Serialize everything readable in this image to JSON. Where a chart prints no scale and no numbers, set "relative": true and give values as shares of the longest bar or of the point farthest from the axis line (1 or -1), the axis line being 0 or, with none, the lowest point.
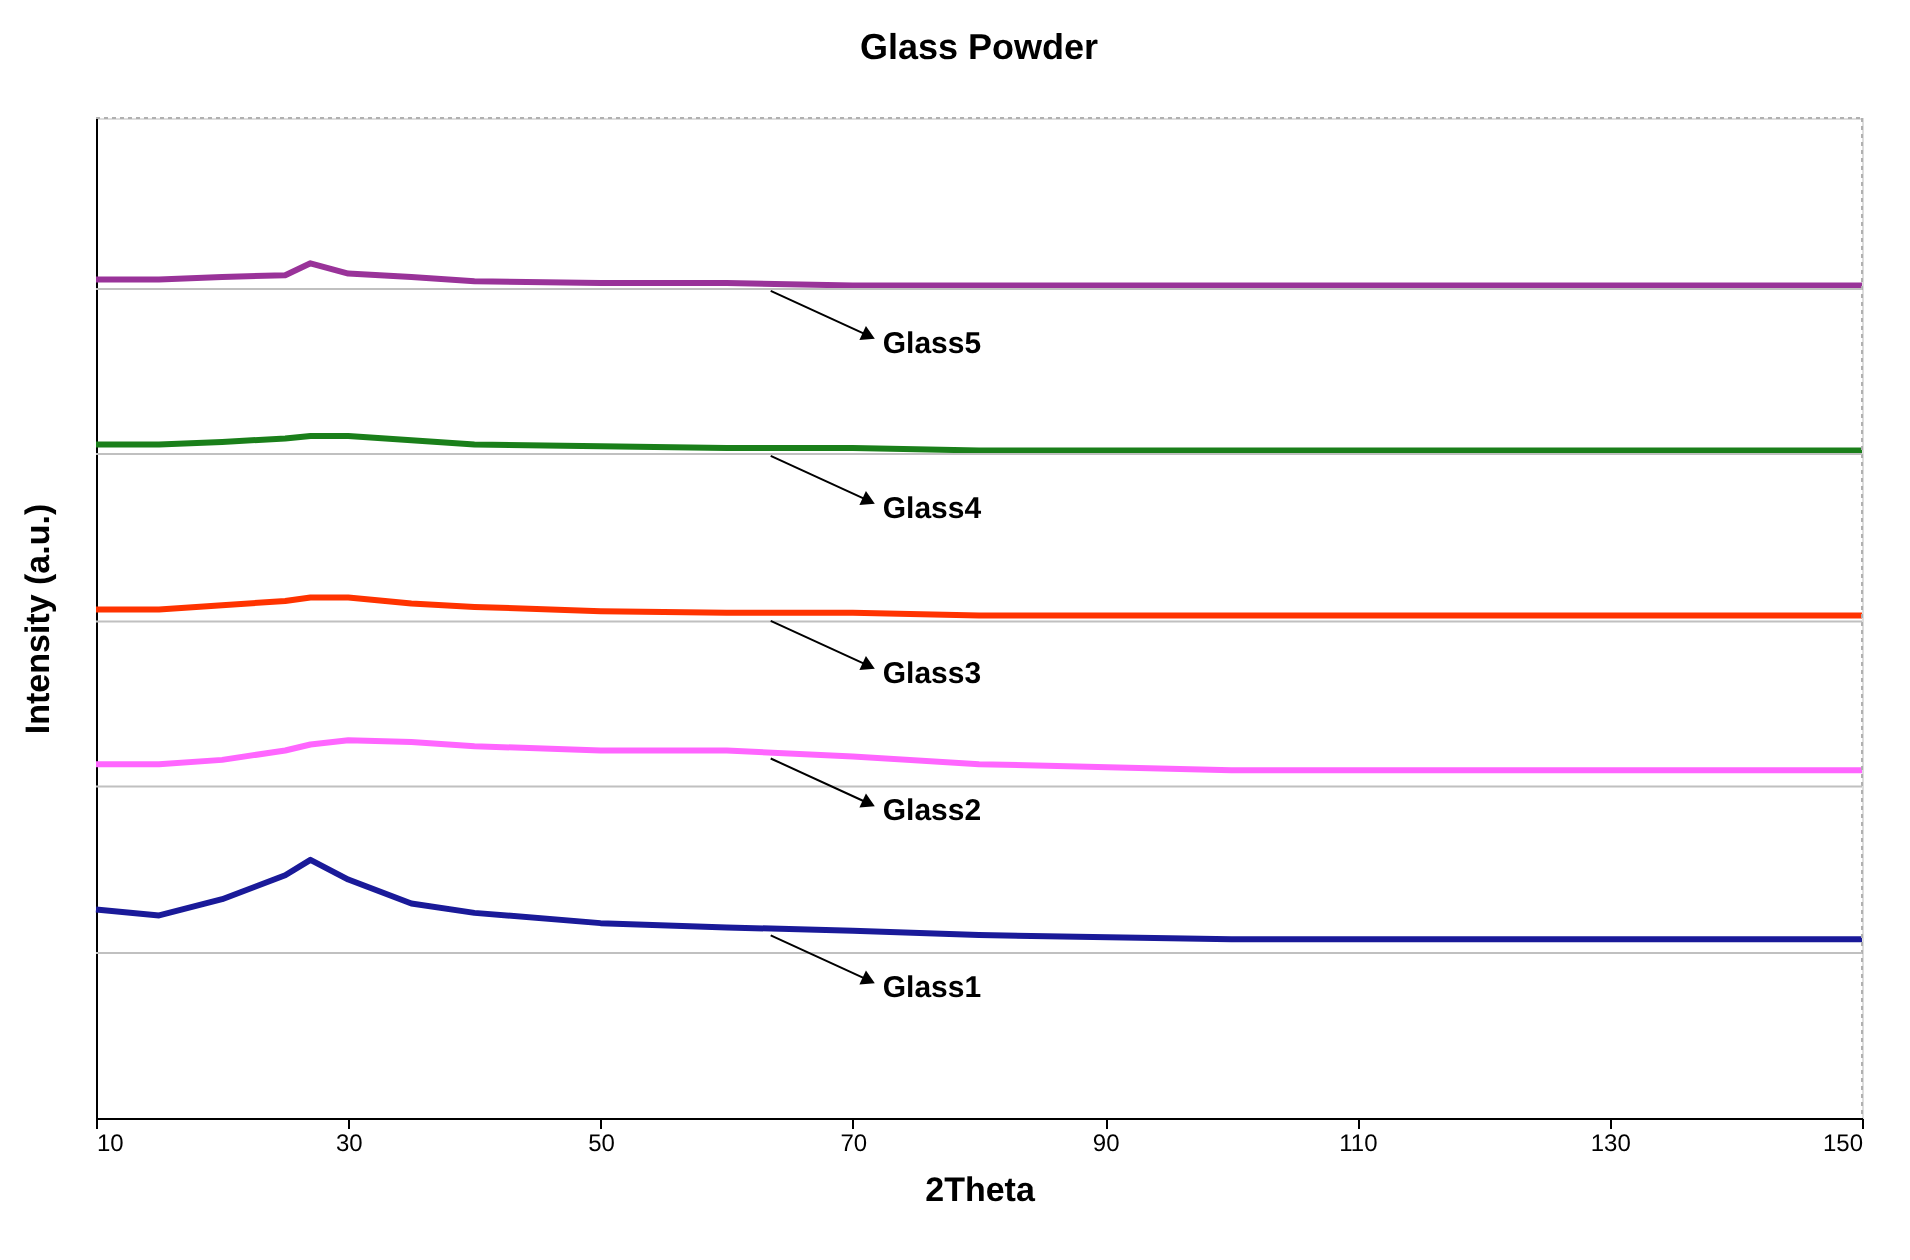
{
  "chart_data": {
    "type": "line",
    "title": "Glass Powder",
    "xlabel": "2Theta",
    "ylabel": "Intensity (a.u.)",
    "relative": true,
    "x": [
      10,
      15,
      20,
      25,
      27,
      30,
      35,
      40,
      50,
      60,
      70,
      80,
      100,
      120,
      150
    ],
    "xlim": [
      10,
      150
    ],
    "xticks": [
      10,
      30,
      50,
      70,
      90,
      110,
      130,
      150
    ],
    "grid": false,
    "marker": "none",
    "line_style": "solid",
    "series": [
      {
        "name": "Glass5",
        "color": "#993399",
        "values": [
          0.981,
          0.981,
          0.984,
          0.986,
          1.0,
          0.988,
          0.984,
          0.979,
          0.977,
          0.977,
          0.974,
          0.974,
          0.974,
          0.974,
          0.974
        ]
      },
      {
        "name": "Glass4",
        "color": "#1a7f1a",
        "values": [
          0.788,
          0.788,
          0.791,
          0.795,
          0.798,
          0.798,
          0.793,
          0.788,
          0.786,
          0.784,
          0.784,
          0.781,
          0.781,
          0.781,
          0.781
        ]
      },
      {
        "name": "Glass3",
        "color": "#ff3300",
        "values": [
          0.595,
          0.595,
          0.6,
          0.605,
          0.609,
          0.609,
          0.602,
          0.598,
          0.593,
          0.591,
          0.591,
          0.588,
          0.588,
          0.588,
          0.588
        ]
      },
      {
        "name": "Glass2",
        "color": "#ff66ff",
        "values": [
          0.414,
          0.414,
          0.419,
          0.43,
          0.437,
          0.442,
          0.44,
          0.435,
          0.43,
          0.43,
          0.423,
          0.414,
          0.407,
          0.407,
          0.407
        ]
      },
      {
        "name": "Glass1",
        "color": "#1a1a99",
        "values": [
          0.244,
          0.237,
          0.256,
          0.284,
          0.302,
          0.279,
          0.251,
          0.24,
          0.228,
          0.223,
          0.219,
          0.214,
          0.209,
          0.209,
          0.209
        ]
      }
    ],
    "ref_lines": [
      {
        "axis": "y",
        "value": 0.97,
        "color": "#c0c0c0"
      },
      {
        "axis": "y",
        "value": 0.777,
        "color": "#c0c0c0"
      },
      {
        "axis": "y",
        "value": 0.581,
        "color": "#c0c0c0"
      },
      {
        "axis": "y",
        "value": 0.388,
        "color": "#c0c0c0"
      },
      {
        "axis": "y",
        "value": 0.193,
        "color": "#c0c0c0"
      }
    ]
  }
}
